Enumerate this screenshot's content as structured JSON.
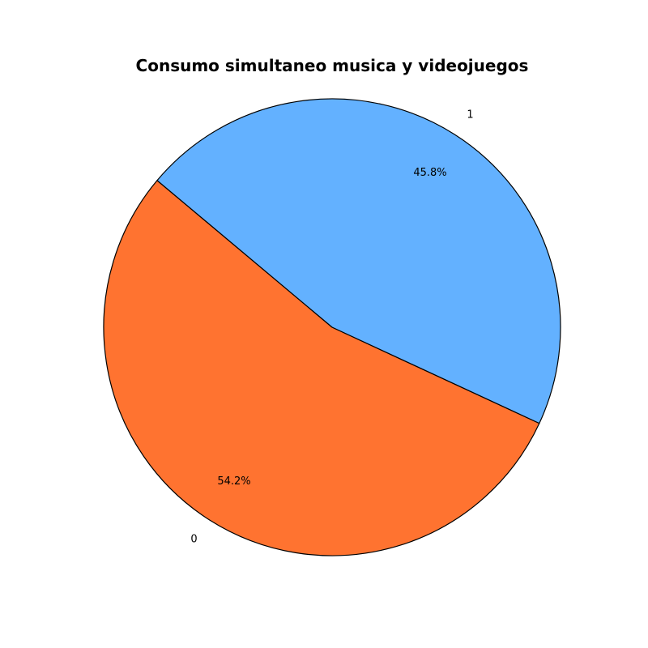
{
  "chart_data": {
    "type": "pie",
    "title": "Consumo simultaneo musica y videojuegos",
    "categories": [
      "0",
      "1"
    ],
    "values": [
      54.2,
      45.8
    ],
    "value_labels": [
      "54.2%",
      "45.8%"
    ],
    "colors": [
      "#ff7330",
      "#63b1ff"
    ],
    "edge_color": "#000000",
    "start_angle_deg": 140,
    "direction": "counterclockwise"
  }
}
